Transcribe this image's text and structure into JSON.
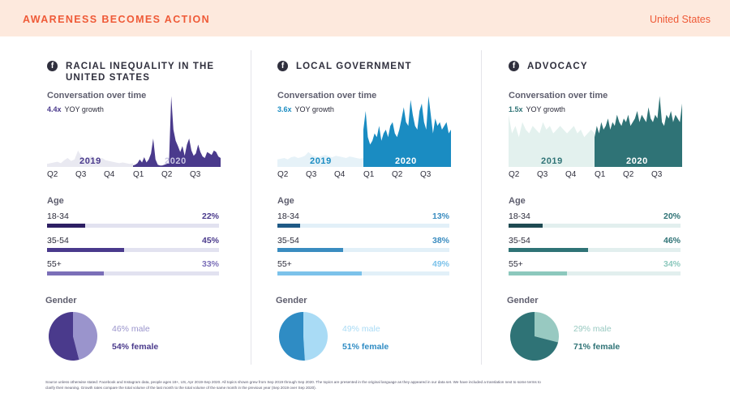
{
  "header": {
    "title": "AWARENESS BECOMES ACTION",
    "country": "United States"
  },
  "labels": {
    "conversation": "Conversation over time",
    "yoy_suffix": "YOY growth",
    "age": "Age",
    "gender": "Gender",
    "year_2019": "2019",
    "year_2020": "2020",
    "quarters": [
      "Q2",
      "Q3",
      "Q4",
      "Q1",
      "Q2",
      "Q3"
    ]
  },
  "chart_data": [
    {
      "type": "area",
      "title": "RACIAL INEQUALITY IN THE UNITED STATES",
      "icon": "facebook-icon",
      "yoy": "4.4x",
      "colors": {
        "accent": "#4a3a8c",
        "faded": "#e9e9f1",
        "track": "#e2e2f0",
        "fill_18_34": "#2d1f63",
        "fill_35_54": "#4a3a8c",
        "fill_55": "#7b6fb8",
        "male": "#9a94cc",
        "female": "#4a3a8c"
      },
      "series_2019": [
        0.04,
        0.05,
        0.06,
        0.07,
        0.05,
        0.09,
        0.12,
        0.08,
        0.1,
        0.22,
        0.14,
        0.1,
        0.12,
        0.15,
        0.11,
        0.1,
        0.12,
        0.09,
        0.08,
        0.07,
        0.06,
        0.05,
        0.06,
        0.05,
        0.04,
        0.05
      ],
      "series_2020": [
        0.02,
        0.03,
        0.05,
        0.1,
        0.06,
        0.13,
        0.06,
        0.1,
        0.18,
        0.38,
        0.1,
        0.03,
        0.02,
        0.02,
        0.03,
        0.04,
        0.05,
        0.95,
        0.5,
        0.35,
        0.28,
        0.2,
        0.28,
        0.15,
        0.3,
        0.38,
        0.22,
        0.15,
        0.18,
        0.3,
        0.2,
        0.14,
        0.12,
        0.2,
        0.18,
        0.16,
        0.22,
        0.2,
        0.14,
        0.12
      ],
      "age": [
        {
          "name": "18-34",
          "pct": 22
        },
        {
          "name": "35-54",
          "pct": 45
        },
        {
          "name": "55+",
          "pct": 33
        }
      ],
      "gender": {
        "male": 46,
        "female": 54,
        "male_label": "46% male",
        "female_label": "54% female"
      }
    },
    {
      "type": "area",
      "title": "LOCAL GOVERNMENT",
      "icon": "facebook-icon",
      "yoy": "3.6x",
      "colors": {
        "accent": "#1a8cc2",
        "faded": "#e6f2f8",
        "track": "#e2f0f8",
        "fill_18_34": "#1f5a86",
        "fill_35_54": "#3a8cc0",
        "fill_55": "#7cc2ea",
        "male": "#a9dbf5",
        "female": "#2f8cc4"
      },
      "series_2019": [
        0.1,
        0.11,
        0.12,
        0.1,
        0.13,
        0.14,
        0.12,
        0.13,
        0.15,
        0.2,
        0.16,
        0.14,
        0.13,
        0.15,
        0.16,
        0.14,
        0.13,
        0.15,
        0.14,
        0.13,
        0.12,
        0.14,
        0.13,
        0.12,
        0.11,
        0.12
      ],
      "series_2020": [
        0.5,
        0.75,
        0.4,
        0.3,
        0.35,
        0.45,
        0.4,
        0.55,
        0.35,
        0.45,
        0.5,
        0.4,
        0.55,
        0.6,
        0.45,
        0.4,
        0.5,
        0.65,
        0.8,
        0.6,
        0.55,
        0.9,
        0.7,
        0.55,
        0.5,
        0.75,
        0.85,
        0.6,
        0.5,
        0.95,
        0.7,
        0.45,
        0.65,
        0.55,
        0.6,
        0.5,
        0.55,
        0.6,
        0.45,
        0.5
      ],
      "age": [
        {
          "name": "18-34",
          "pct": 13
        },
        {
          "name": "35-54",
          "pct": 38
        },
        {
          "name": "55+",
          "pct": 49
        }
      ],
      "gender": {
        "male": 49,
        "female": 51,
        "male_label": "49% male",
        "female_label": "51% female"
      }
    },
    {
      "type": "area",
      "title": "ADVOCACY",
      "icon": "facebook-icon",
      "yoy": "1.5x",
      "colors": {
        "accent": "#2f7376",
        "faded": "#e3f1ee",
        "track": "#e2efee",
        "fill_18_34": "#1f4a52",
        "fill_35_54": "#2f7376",
        "fill_55": "#8cc8bd",
        "male": "#98c9c1",
        "female": "#2f7376"
      },
      "series_2019": [
        0.7,
        0.45,
        0.55,
        0.4,
        0.6,
        0.5,
        0.45,
        0.55,
        0.5,
        0.45,
        0.6,
        0.5,
        0.55,
        0.45,
        0.5,
        0.55,
        0.5,
        0.45,
        0.5,
        0.55,
        0.45,
        0.5,
        0.4,
        0.45,
        0.5,
        0.45
      ],
      "series_2020": [
        0.4,
        0.55,
        0.45,
        0.6,
        0.5,
        0.55,
        0.65,
        0.5,
        0.6,
        0.55,
        0.7,
        0.6,
        0.55,
        0.65,
        0.6,
        0.7,
        0.55,
        0.6,
        0.65,
        0.75,
        0.6,
        0.7,
        0.65,
        0.6,
        0.8,
        0.65,
        0.6,
        0.7,
        0.65,
        0.95,
        0.6,
        0.55,
        0.7,
        0.65,
        0.75,
        0.6,
        0.7,
        0.65,
        0.6,
        0.85
      ],
      "age": [
        {
          "name": "18-34",
          "pct": 20
        },
        {
          "name": "35-54",
          "pct": 46
        },
        {
          "name": "55+",
          "pct": 34
        }
      ],
      "gender": {
        "male": 29,
        "female": 71,
        "male_label": "29% male",
        "female_label": "71% female"
      }
    }
  ],
  "footnote": "Source unless otherwise stated: Facebook and Instagram data, people ages 18+, US, Apr 2019-Sep 2020. All topics shown grew from Sep 2019 through Sep 2020. The topics are presented in the original language as they appeared in our data set. We have included a translation next to some terms to clarify their meaning. Growth rates compare the total volume of the last month to the total volume of the same month in the previous year (Sep 2019 over Sep 2020)."
}
